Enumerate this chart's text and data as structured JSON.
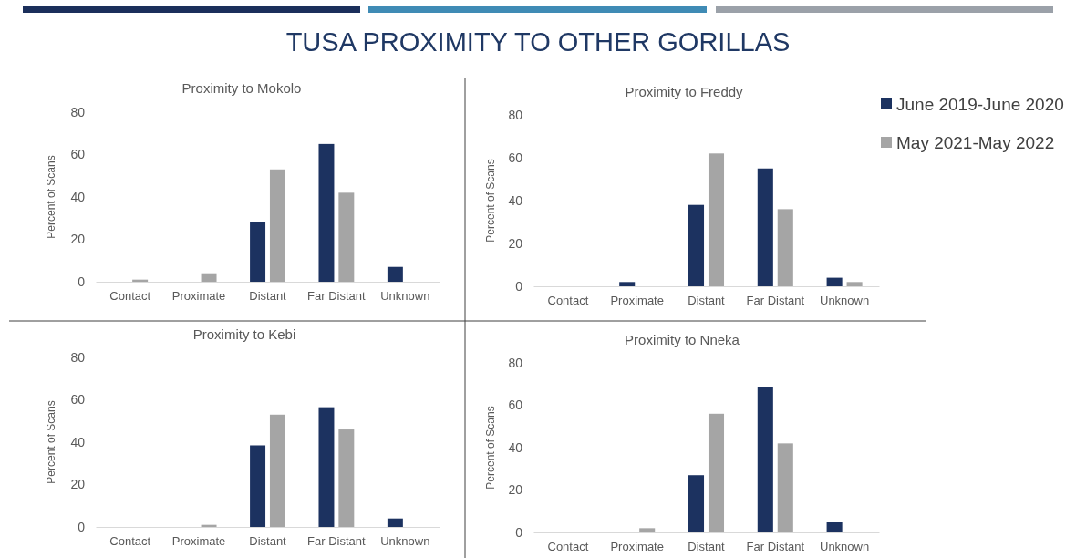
{
  "chart_data": [
    {
      "type": "other",
      "title": "TUSA PROXIMITY TO OTHER GORILLAS"
    },
    {
      "type": "bar",
      "title": "Proximity to Mokolo",
      "ylabel": "Percent of Scans",
      "categories": [
        "Contact",
        "Proximate",
        "Distant",
        "Far Distant",
        "Unknown"
      ],
      "series": [
        {
          "color": "#1c3260",
          "values": [
            0,
            0,
            28,
            65,
            7
          ]
        },
        {
          "color": "#a5a5a5",
          "values": [
            1,
            4,
            53,
            42,
            0
          ]
        }
      ],
      "ylim": [
        0,
        80
      ],
      "yticks": [
        0,
        20,
        40,
        60,
        80
      ]
    },
    {
      "type": "bar",
      "title": "Proximity to Freddy",
      "ylabel": "Percent of Scans",
      "categories": [
        "Contact",
        "Proximate",
        "Distant",
        "Far Distant",
        "Unknown"
      ],
      "series": [
        {
          "name": "June 2019-June 2020",
          "color": "#1c3260",
          "values": [
            0,
            2,
            38,
            55,
            4
          ]
        },
        {
          "name": "May 2021-May 2022",
          "color": "#a5a5a5",
          "values": [
            0,
            0,
            62,
            36,
            2
          ]
        }
      ],
      "ylim": [
        0,
        80
      ],
      "yticks": [
        0,
        20,
        40,
        60,
        80
      ],
      "legend": "right"
    },
    {
      "type": "bar",
      "title": "Proximity to Kebi",
      "ylabel": "Percent of Scans",
      "categories": [
        "Contact",
        "Proximate",
        "Distant",
        "Far Distant",
        "Unknown"
      ],
      "series": [
        {
          "color": "#1c3260",
          "values": [
            0,
            0,
            38.5,
            56.5,
            4
          ]
        },
        {
          "color": "#a5a5a5",
          "values": [
            0,
            1,
            53,
            46,
            0
          ]
        }
      ],
      "ylim": [
        0,
        80
      ],
      "yticks": [
        0,
        20,
        40,
        60,
        80
      ]
    },
    {
      "type": "bar",
      "title": "Proximity to Nneka",
      "ylabel": "Percent of Scans",
      "categories": [
        "Contact",
        "Proximate",
        "Distant",
        "Far Distant",
        "Unknown"
      ],
      "series": [
        {
          "color": "#1c3260",
          "values": [
            0,
            0,
            27,
            68.5,
            5
          ]
        },
        {
          "color": "#a5a5a5",
          "values": [
            0,
            2,
            56,
            42,
            0
          ]
        }
      ],
      "ylim": [
        0,
        80
      ],
      "yticks": [
        0,
        20,
        40,
        60,
        80
      ]
    }
  ]
}
